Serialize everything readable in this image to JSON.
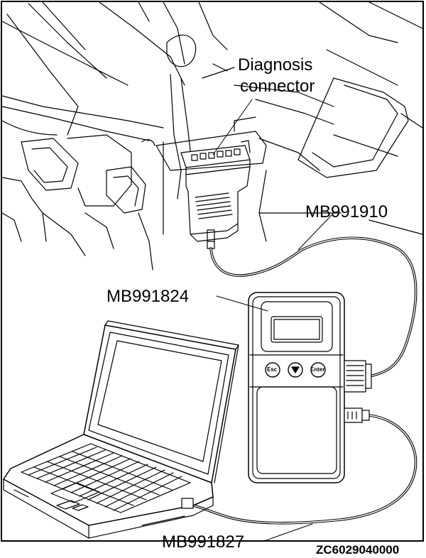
{
  "labels": {
    "diagnosis_line1": "Diagnosis",
    "diagnosis_line2": "connector",
    "cable_top": "MB991910",
    "device": "MB991824",
    "cable_bottom": "MB991827",
    "figure_code": "ZC6029040000"
  },
  "device_buttons": {
    "esc": "Esc",
    "enter": "Enter"
  }
}
